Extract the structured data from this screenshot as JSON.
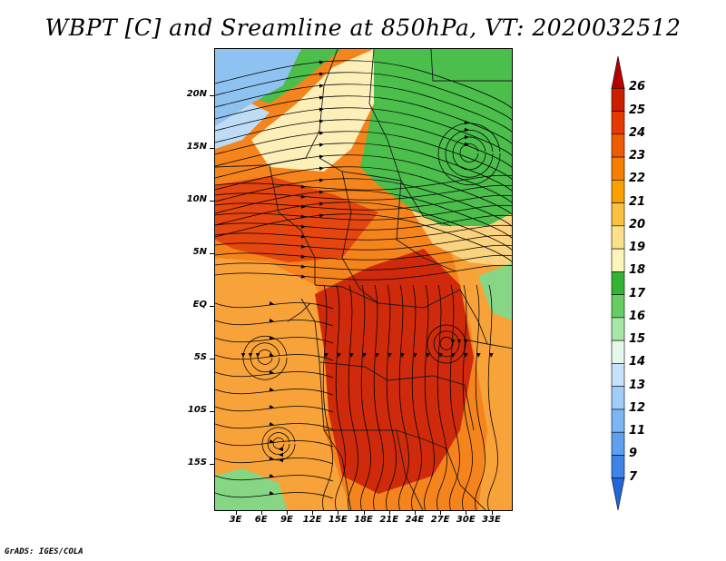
{
  "title": "WBPT [C] and Sreamline at 850hPa, VT: 2020032512",
  "footer": "GrADS: IGES/COLA",
  "lat_labels": [
    "20N",
    "15N",
    "10N",
    "5N",
    "EQ",
    "5S",
    "10S",
    "15S"
  ],
  "lat_values": [
    20,
    15,
    10,
    5,
    0,
    -5,
    -10,
    -15
  ],
  "lon_labels": [
    "3E",
    "6E",
    "9E",
    "12E",
    "15E",
    "18E",
    "21E",
    "24E",
    "27E",
    "30E",
    "33E"
  ],
  "lon_values": [
    3,
    6,
    9,
    12,
    15,
    18,
    21,
    24,
    27,
    30,
    33
  ],
  "extent": {
    "lon_min": 0.5,
    "lon_max": 35.5,
    "lat_min": -19.5,
    "lat_max": 24.5
  },
  "colorbar": {
    "levels": [
      "26",
      "25",
      "24",
      "23",
      "22",
      "21",
      "20",
      "19",
      "18",
      "17",
      "16",
      "15",
      "14",
      "13",
      "12",
      "11",
      "9",
      "7"
    ],
    "colors": [
      "#b40000",
      "#cc1e00",
      "#e63a00",
      "#f05a00",
      "#f77e00",
      "#f9a000",
      "#fac040",
      "#fbe08a",
      "#fcf4b8",
      "#34b434",
      "#64cd64",
      "#a8e6a8",
      "#e6f8ee",
      "#c6e2fa",
      "#a0cef8",
      "#7cb6f4",
      "#5ea0ef",
      "#3e84e6",
      "#2466d8"
    ]
  },
  "fill_colors": {
    "deep_red": "#cf2a0c",
    "red": "#e5450f",
    "orange_red": "#ee5f14",
    "orange": "#f5841c",
    "light_orange": "#f8a23a",
    "yellow": "#fbd37e",
    "pale": "#fcefb8",
    "green": "#4bbe4b",
    "light_green": "#86d686",
    "blue": "#8ec2f0",
    "light_blue": "#bfdcf7",
    "border": "#1a1a1a",
    "streamline": "#000000"
  }
}
